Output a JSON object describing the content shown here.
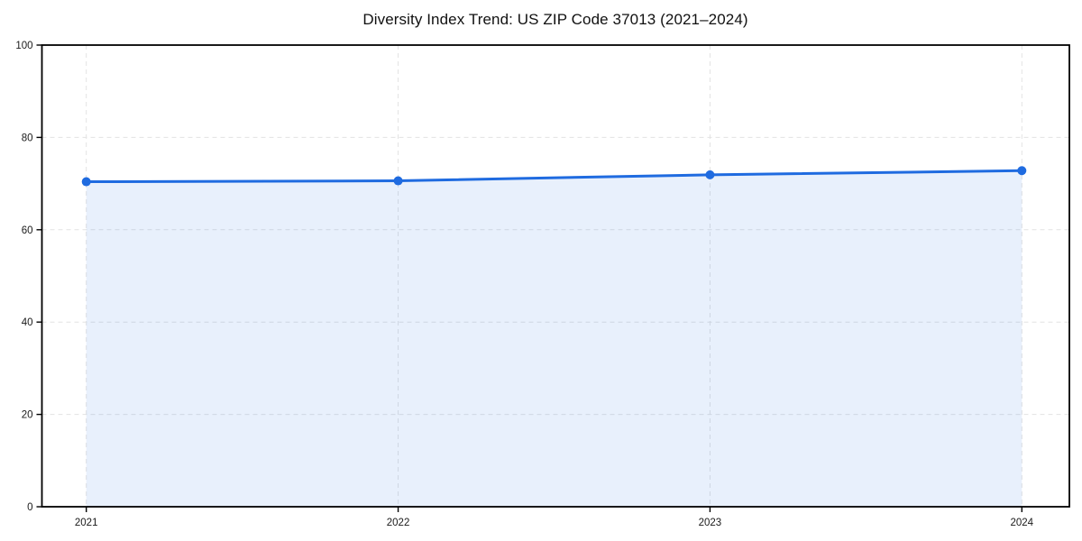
{
  "chart_data": {
    "type": "line",
    "title": "Diversity Index Trend: US ZIP Code 37013 (2021–2024)",
    "x": [
      2021,
      2022,
      2023,
      2024
    ],
    "xticklabels": [
      "2021",
      "2022",
      "2023",
      "2024"
    ],
    "series": [
      {
        "name": "Diversity Index",
        "values": [
          70.4,
          70.6,
          71.9,
          72.8
        ]
      }
    ],
    "xlabel": "",
    "ylabel": "",
    "ylim": [
      0,
      100
    ],
    "yticks": [
      0,
      20,
      40,
      60,
      80,
      100
    ],
    "grid": true,
    "grid_style": "dashed",
    "legend": false,
    "area_fill": true,
    "marker": "circle",
    "colors": {
      "line": "#1f6be0",
      "marker": "#1f6be0",
      "fill": "#1f6be0",
      "fill_opacity": 0.1,
      "grid": "#e3e3e3",
      "spine": "#000000",
      "tick_text": "#1a1a1a",
      "background": "#ffffff"
    }
  }
}
